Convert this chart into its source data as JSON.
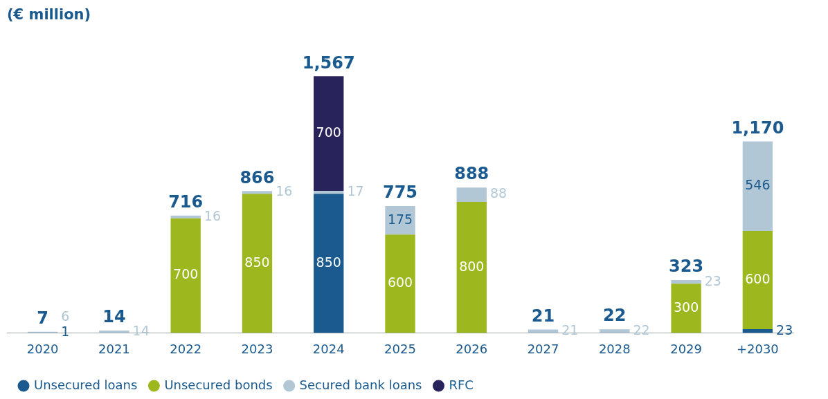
{
  "chart_data": {
    "type": "bar",
    "title": "(€ million)",
    "stacked": true,
    "legend": "bottom",
    "grid": false,
    "categories": [
      "2020",
      "2021",
      "2022",
      "2023",
      "2024",
      "2025",
      "2026",
      "2027",
      "2028",
      "2029",
      "+2030"
    ],
    "series": [
      {
        "name": "Unsecured loans",
        "color": "#1b5a8e",
        "values": [
          1,
          null,
          null,
          null,
          850,
          null,
          null,
          null,
          null,
          null,
          23
        ],
        "value_labels": [
          "1",
          null,
          null,
          null,
          "850",
          null,
          null,
          null,
          null,
          null,
          "23"
        ]
      },
      {
        "name": "Unsecured bonds",
        "color": "#9db81f",
        "values": [
          null,
          null,
          700,
          850,
          null,
          600,
          800,
          null,
          null,
          300,
          600
        ],
        "value_labels": [
          null,
          null,
          "700",
          "850",
          null,
          "600",
          "800",
          null,
          null,
          "300",
          "600"
        ]
      },
      {
        "name": "Secured bank loans",
        "color": "#b1c7d5",
        "values": [
          6,
          14,
          16,
          16,
          17,
          175,
          88,
          21,
          22,
          23,
          546
        ],
        "value_labels": [
          "6",
          "14",
          "16",
          "16",
          "17",
          "175",
          "88",
          "21",
          "22",
          "23",
          "546"
        ]
      },
      {
        "name": "RFC",
        "color": "#29235c",
        "values": [
          null,
          null,
          null,
          null,
          700,
          null,
          null,
          null,
          null,
          null,
          null
        ],
        "value_labels": [
          null,
          null,
          null,
          null,
          "700",
          null,
          null,
          null,
          null,
          null,
          null
        ]
      }
    ],
    "totals": [
      "7",
      "14",
      "716",
      "866",
      "1,567",
      "775",
      "888",
      "21",
      "22",
      "323",
      "1,170"
    ]
  }
}
